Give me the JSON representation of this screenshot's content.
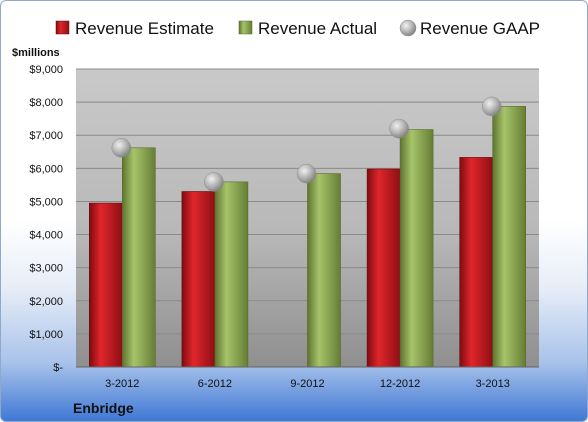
{
  "chart_data": {
    "type": "bar",
    "company": "Enbridge",
    "ylabel": "$millions",
    "categories": [
      "3-2012",
      "6-2012",
      "9-2012",
      "12-2012",
      "3-2013"
    ],
    "ylim": [
      0,
      9000
    ],
    "y_ticks": [
      "$-",
      "$1,000",
      "$2,000",
      "$3,000",
      "$4,000",
      "$5,000",
      "$6,000",
      "$7,000",
      "$8,000",
      "$9,000"
    ],
    "legend_position": "top",
    "series": [
      {
        "name": "Revenue Estimate",
        "kind": "bar",
        "color": "#c8181e",
        "values": [
          4950,
          5300,
          null,
          5980,
          6330
        ]
      },
      {
        "name": "Revenue Actual",
        "kind": "bar",
        "color": "#8fac4f",
        "values": [
          6620,
          5590,
          5840,
          7170,
          7870
        ]
      },
      {
        "name": "Revenue GAAP",
        "kind": "marker",
        "color": "#a6a6a6",
        "values": [
          6620,
          5590,
          5840,
          7200,
          7870
        ]
      }
    ]
  }
}
